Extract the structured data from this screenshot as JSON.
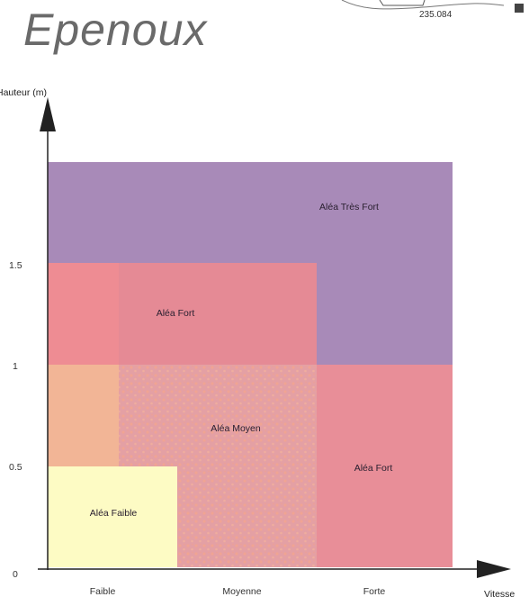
{
  "header": {
    "title": "Epenoux",
    "map_ref": "235.084"
  },
  "chart_data": {
    "type": "heatmap",
    "xlabel": "Vitesse",
    "ylabel": "Hauteur (m)",
    "x_categories": [
      "Faible",
      "Moyenne",
      "Forte"
    ],
    "y_ticks": [
      "0",
      "0.5",
      "1",
      "1.5"
    ],
    "zones": [
      {
        "label": "Aléa Très Fort",
        "color": "#a88ab8"
      },
      {
        "label": "Aléa Fort",
        "color": "#e58a95"
      },
      {
        "label": "Aléa Moyen",
        "color": "#e4a0a4"
      },
      {
        "label": "Aléa Fort",
        "color": "#e88e98"
      },
      {
        "label": "Aléa Faible",
        "color": "#fdfbc4"
      }
    ]
  }
}
